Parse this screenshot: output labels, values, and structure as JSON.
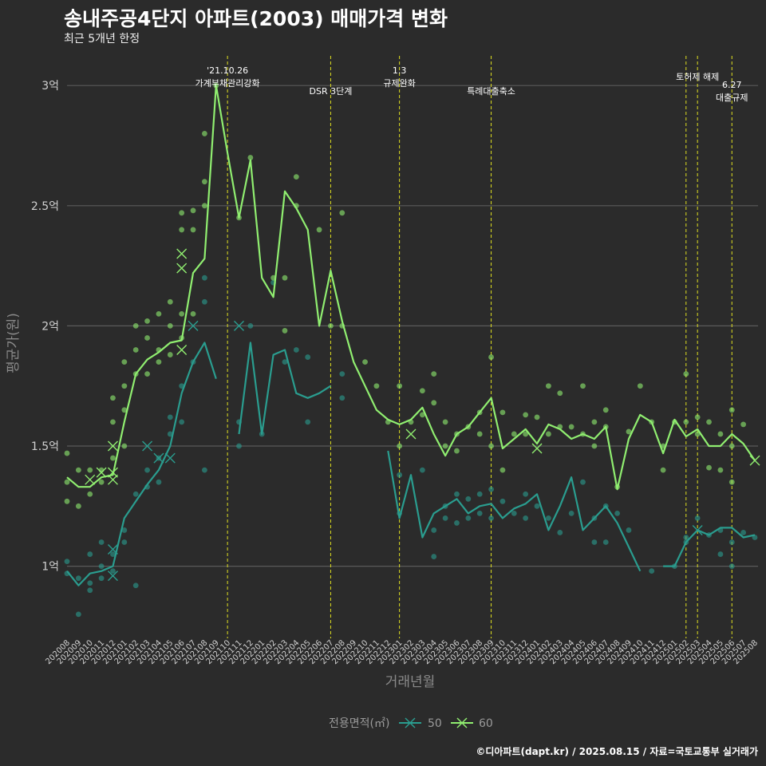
{
  "header": {
    "title": "송내주공4단지 아파트(2003) 매매가격 변화",
    "subtitle": "최근 5개년 한정"
  },
  "footer": {
    "caption": "©디아파트(dapt.kr) / 2025.08.15 / 자료=국토교통부 실거래가"
  },
  "chart_data": {
    "type": "line",
    "xlabel": "거래년월",
    "ylabel": "평균가(원)",
    "ylim": [
      0.7,
      3.15
    ],
    "y_ticks": [
      {
        "value": 1.0,
        "label": "1억"
      },
      {
        "value": 1.5,
        "label": "1.5억"
      },
      {
        "value": 2.0,
        "label": "2억"
      },
      {
        "value": 2.5,
        "label": "2.5억"
      },
      {
        "value": 3.0,
        "label": "3억"
      }
    ],
    "grid": true,
    "legend": {
      "title": "전용면적(㎡)",
      "position": "bottom"
    },
    "colors": {
      "50": "#2a9d8f",
      "60": "#90ee70",
      "vline": "#e0e020",
      "grid": "#5a5a5a"
    },
    "categories": [
      "202008",
      "202009",
      "202010",
      "202011",
      "202012",
      "202101",
      "202102",
      "202103",
      "202104",
      "202105",
      "202106",
      "202107",
      "202108",
      "202109",
      "202110",
      "202111",
      "202112",
      "202201",
      "202202",
      "202203",
      "202204",
      "202205",
      "202206",
      "202207",
      "202208",
      "202209",
      "202210",
      "202211",
      "202212",
      "202301",
      "202302",
      "202303",
      "202304",
      "202305",
      "202306",
      "202307",
      "202308",
      "202309",
      "202310",
      "202311",
      "202312",
      "202401",
      "202402",
      "202403",
      "202404",
      "202405",
      "202406",
      "202407",
      "202408",
      "202409",
      "202410",
      "202411",
      "202412",
      "202501",
      "202502",
      "202503",
      "202504",
      "202505",
      "202506",
      "202507",
      "202508"
    ],
    "series": [
      {
        "name": "50",
        "values": [
          0.98,
          0.92,
          0.97,
          0.98,
          1.0,
          1.2,
          1.27,
          1.34,
          1.4,
          1.5,
          1.72,
          1.85,
          1.93,
          1.78,
          null,
          1.55,
          1.93,
          1.55,
          1.88,
          1.9,
          1.72,
          1.7,
          1.72,
          1.75,
          null,
          null,
          null,
          null,
          1.48,
          1.2,
          1.38,
          1.12,
          1.22,
          1.25,
          1.28,
          1.22,
          1.25,
          1.26,
          1.2,
          1.24,
          1.26,
          1.3,
          1.15,
          1.25,
          1.37,
          1.15,
          1.2,
          1.25,
          1.18,
          1.08,
          0.98,
          null,
          1.0,
          1.0,
          1.1,
          1.15,
          1.13,
          1.16,
          1.16,
          1.12,
          1.13
        ]
      },
      {
        "name": "60",
        "values": [
          1.37,
          1.33,
          1.33,
          1.37,
          1.38,
          1.6,
          1.8,
          1.86,
          1.89,
          1.93,
          1.94,
          2.22,
          2.28,
          3.0,
          2.72,
          2.45,
          2.69,
          2.2,
          2.12,
          2.56,
          2.49,
          2.4,
          2.0,
          2.23,
          2.02,
          1.85,
          1.75,
          1.65,
          1.61,
          1.59,
          1.61,
          1.66,
          1.55,
          1.46,
          1.55,
          1.58,
          1.64,
          1.7,
          1.49,
          1.53,
          1.57,
          1.51,
          1.59,
          1.57,
          1.53,
          1.55,
          1.53,
          1.58,
          1.32,
          1.53,
          1.63,
          1.6,
          1.47,
          1.61,
          1.54,
          1.57,
          1.5,
          1.5,
          1.55,
          1.51,
          1.44
        ]
      }
    ],
    "scatter": {
      "50": [
        {
          "x": "202008",
          "y": 1.02
        },
        {
          "x": "202008",
          "y": 0.97
        },
        {
          "x": "202009",
          "y": 0.8
        },
        {
          "x": "202009",
          "y": 0.95
        },
        {
          "x": "202010",
          "y": 1.05
        },
        {
          "x": "202010",
          "y": 0.9
        },
        {
          "x": "202010",
          "y": 0.93
        },
        {
          "x": "202011",
          "y": 1.0
        },
        {
          "x": "202011",
          "y": 0.95
        },
        {
          "x": "202011",
          "y": 1.1
        },
        {
          "x": "202012",
          "y": 1.05
        },
        {
          "x": "202012",
          "y": 0.98
        },
        {
          "x": "202101",
          "y": 1.15
        },
        {
          "x": "202101",
          "y": 1.1
        },
        {
          "x": "202102",
          "y": 0.92
        },
        {
          "x": "202102",
          "y": 1.3
        },
        {
          "x": "202103",
          "y": 1.33
        },
        {
          "x": "202103",
          "y": 1.4
        },
        {
          "x": "202104",
          "y": 1.35
        },
        {
          "x": "202104",
          "y": 1.45
        },
        {
          "x": "202105",
          "y": 1.55
        },
        {
          "x": "202105",
          "y": 1.62
        },
        {
          "x": "202106",
          "y": 1.75
        },
        {
          "x": "202106",
          "y": 1.6
        },
        {
          "x": "202107",
          "y": 1.85
        },
        {
          "x": "202108",
          "y": 1.4
        },
        {
          "x": "202108",
          "y": 2.1
        },
        {
          "x": "202108",
          "y": 2.2
        },
        {
          "x": "202111",
          "y": 1.5
        },
        {
          "x": "202111",
          "y": 1.6
        },
        {
          "x": "202112",
          "y": 2.0
        },
        {
          "x": "202201",
          "y": 1.55
        },
        {
          "x": "202202",
          "y": 2.18
        },
        {
          "x": "202203",
          "y": 1.85
        },
        {
          "x": "202204",
          "y": 1.9
        },
        {
          "x": "202205",
          "y": 1.6
        },
        {
          "x": "202205",
          "y": 1.87
        },
        {
          "x": "202208",
          "y": 1.7
        },
        {
          "x": "202208",
          "y": 1.8
        },
        {
          "x": "202301",
          "y": 1.38
        },
        {
          "x": "202301",
          "y": 1.22
        },
        {
          "x": "202303",
          "y": 1.4
        },
        {
          "x": "202304",
          "y": 1.04
        },
        {
          "x": "202304",
          "y": 1.15
        },
        {
          "x": "202305",
          "y": 1.25
        },
        {
          "x": "202305",
          "y": 1.2
        },
        {
          "x": "202306",
          "y": 1.18
        },
        {
          "x": "202306",
          "y": 1.3
        },
        {
          "x": "202307",
          "y": 1.2
        },
        {
          "x": "202307",
          "y": 1.28
        },
        {
          "x": "202308",
          "y": 1.22
        },
        {
          "x": "202308",
          "y": 1.3
        },
        {
          "x": "202309",
          "y": 1.2
        },
        {
          "x": "202309",
          "y": 1.32
        },
        {
          "x": "202310",
          "y": 1.27
        },
        {
          "x": "202311",
          "y": 1.22
        },
        {
          "x": "202312",
          "y": 1.2
        },
        {
          "x": "202312",
          "y": 1.3
        },
        {
          "x": "202401",
          "y": 1.25
        },
        {
          "x": "202402",
          "y": 1.2
        },
        {
          "x": "202403",
          "y": 1.14
        },
        {
          "x": "202404",
          "y": 1.22
        },
        {
          "x": "202405",
          "y": 1.35
        },
        {
          "x": "202406",
          "y": 1.1
        },
        {
          "x": "202406",
          "y": 1.2
        },
        {
          "x": "202407",
          "y": 1.1
        },
        {
          "x": "202407",
          "y": 1.25
        },
        {
          "x": "202408",
          "y": 1.22
        },
        {
          "x": "202409",
          "y": 1.15
        },
        {
          "x": "202411",
          "y": 0.98
        },
        {
          "x": "202501",
          "y": 1.0
        },
        {
          "x": "202502",
          "y": 1.12
        },
        {
          "x": "202502",
          "y": 1.1
        },
        {
          "x": "202503",
          "y": 1.2
        },
        {
          "x": "202504",
          "y": 1.13
        },
        {
          "x": "202505",
          "y": 1.15
        },
        {
          "x": "202505",
          "y": 1.05
        },
        {
          "x": "202506",
          "y": 1.1
        },
        {
          "x": "202506",
          "y": 1.0
        },
        {
          "x": "202507",
          "y": 1.14
        },
        {
          "x": "202508",
          "y": 1.12
        }
      ],
      "60": [
        {
          "x": "202008",
          "y": 1.47
        },
        {
          "x": "202008",
          "y": 1.35
        },
        {
          "x": "202008",
          "y": 1.27
        },
        {
          "x": "202009",
          "y": 1.4
        },
        {
          "x": "202009",
          "y": 1.25
        },
        {
          "x": "202010",
          "y": 1.4
        },
        {
          "x": "202010",
          "y": 1.3
        },
        {
          "x": "202011",
          "y": 1.4
        },
        {
          "x": "202011",
          "y": 1.35
        },
        {
          "x": "202012",
          "y": 1.7
        },
        {
          "x": "202012",
          "y": 1.6
        },
        {
          "x": "202012",
          "y": 1.45
        },
        {
          "x": "202101",
          "y": 1.85
        },
        {
          "x": "202101",
          "y": 1.75
        },
        {
          "x": "202101",
          "y": 1.65
        },
        {
          "x": "202101",
          "y": 1.5
        },
        {
          "x": "202102",
          "y": 2.0
        },
        {
          "x": "202102",
          "y": 1.9
        },
        {
          "x": "202102",
          "y": 1.8
        },
        {
          "x": "202103",
          "y": 2.02
        },
        {
          "x": "202103",
          "y": 1.95
        },
        {
          "x": "202103",
          "y": 1.8
        },
        {
          "x": "202104",
          "y": 2.05
        },
        {
          "x": "202104",
          "y": 1.9
        },
        {
          "x": "202104",
          "y": 1.85
        },
        {
          "x": "202105",
          "y": 2.1
        },
        {
          "x": "202105",
          "y": 2.0
        },
        {
          "x": "202105",
          "y": 1.88
        },
        {
          "x": "202106",
          "y": 2.47
        },
        {
          "x": "202106",
          "y": 2.4
        },
        {
          "x": "202106",
          "y": 2.05
        },
        {
          "x": "202106",
          "y": 1.95
        },
        {
          "x": "202107",
          "y": 2.48
        },
        {
          "x": "202107",
          "y": 2.4
        },
        {
          "x": "202107",
          "y": 2.05
        },
        {
          "x": "202108",
          "y": 2.8
        },
        {
          "x": "202108",
          "y": 2.6
        },
        {
          "x": "202108",
          "y": 2.5
        },
        {
          "x": "202109",
          "y": 3.0
        },
        {
          "x": "202111",
          "y": 2.45
        },
        {
          "x": "202112",
          "y": 2.7
        },
        {
          "x": "202202",
          "y": 2.2
        },
        {
          "x": "202203",
          "y": 2.2
        },
        {
          "x": "202203",
          "y": 1.98
        },
        {
          "x": "202204",
          "y": 2.62
        },
        {
          "x": "202204",
          "y": 2.5
        },
        {
          "x": "202206",
          "y": 2.4
        },
        {
          "x": "202207",
          "y": 2.0
        },
        {
          "x": "202208",
          "y": 2.47
        },
        {
          "x": "202208",
          "y": 2.0
        },
        {
          "x": "202210",
          "y": 1.85
        },
        {
          "x": "202211",
          "y": 1.75
        },
        {
          "x": "202212",
          "y": 1.6
        },
        {
          "x": "202301",
          "y": 1.75
        },
        {
          "x": "202301",
          "y": 1.5
        },
        {
          "x": "202302",
          "y": 1.6
        },
        {
          "x": "202303",
          "y": 1.73
        },
        {
          "x": "202303",
          "y": 1.63
        },
        {
          "x": "202304",
          "y": 1.8
        },
        {
          "x": "202304",
          "y": 1.68
        },
        {
          "x": "202305",
          "y": 1.6
        },
        {
          "x": "202305",
          "y": 1.5
        },
        {
          "x": "202306",
          "y": 1.55
        },
        {
          "x": "202306",
          "y": 1.48
        },
        {
          "x": "202307",
          "y": 1.58
        },
        {
          "x": "202308",
          "y": 1.64
        },
        {
          "x": "202308",
          "y": 1.55
        },
        {
          "x": "202309",
          "y": 1.87
        },
        {
          "x": "202309",
          "y": 1.5
        },
        {
          "x": "202310",
          "y": 1.64
        },
        {
          "x": "202310",
          "y": 1.4
        },
        {
          "x": "202311",
          "y": 1.55
        },
        {
          "x": "202312",
          "y": 1.63
        },
        {
          "x": "202312",
          "y": 1.55
        },
        {
          "x": "202401",
          "y": 1.62
        },
        {
          "x": "202402",
          "y": 1.75
        },
        {
          "x": "202402",
          "y": 1.55
        },
        {
          "x": "202403",
          "y": 1.72
        },
        {
          "x": "202403",
          "y": 1.58
        },
        {
          "x": "202404",
          "y": 1.58
        },
        {
          "x": "202405",
          "y": 1.75
        },
        {
          "x": "202405",
          "y": 1.55
        },
        {
          "x": "202406",
          "y": 1.6
        },
        {
          "x": "202406",
          "y": 1.5
        },
        {
          "x": "202407",
          "y": 1.65
        },
        {
          "x": "202407",
          "y": 1.58
        },
        {
          "x": "202408",
          "y": 1.33
        },
        {
          "x": "202409",
          "y": 1.56
        },
        {
          "x": "202410",
          "y": 1.75
        },
        {
          "x": "202411",
          "y": 1.6
        },
        {
          "x": "202412",
          "y": 1.5
        },
        {
          "x": "202412",
          "y": 1.4
        },
        {
          "x": "202501",
          "y": 1.6
        },
        {
          "x": "202502",
          "y": 1.8
        },
        {
          "x": "202502",
          "y": 1.6
        },
        {
          "x": "202503",
          "y": 1.62
        },
        {
          "x": "202503",
          "y": 1.55
        },
        {
          "x": "202504",
          "y": 1.6
        },
        {
          "x": "202504",
          "y": 1.41
        },
        {
          "x": "202505",
          "y": 1.55
        },
        {
          "x": "202505",
          "y": 1.4
        },
        {
          "x": "202506",
          "y": 1.65
        },
        {
          "x": "202506",
          "y": 1.5
        },
        {
          "x": "202506",
          "y": 1.35
        },
        {
          "x": "202507",
          "y": 1.59
        }
      ]
    },
    "cancelled": {
      "50": [
        {
          "x": "202012",
          "y": 1.07
        },
        {
          "x": "202012",
          "y": 0.96
        },
        {
          "x": "202103",
          "y": 1.5
        },
        {
          "x": "202104",
          "y": 1.45
        },
        {
          "x": "202105",
          "y": 1.45
        },
        {
          "x": "202107",
          "y": 2.0
        },
        {
          "x": "202111",
          "y": 2.0
        },
        {
          "x": "202503",
          "y": 1.15
        }
      ],
      "60": [
        {
          "x": "202010",
          "y": 1.36
        },
        {
          "x": "202011",
          "y": 1.39
        },
        {
          "x": "202012",
          "y": 1.5
        },
        {
          "x": "202012",
          "y": 1.36
        },
        {
          "x": "202012",
          "y": 1.39
        },
        {
          "x": "202106",
          "y": 2.3
        },
        {
          "x": "202106",
          "y": 2.24
        },
        {
          "x": "202106",
          "y": 1.9
        },
        {
          "x": "202302",
          "y": 1.55
        },
        {
          "x": "202401",
          "y": 1.49
        },
        {
          "x": "202508",
          "y": 1.44
        }
      ]
    },
    "events": [
      {
        "x": "202110",
        "label_lines": [
          "'21.10.26",
          "가계부채관리강화"
        ],
        "row": 0
      },
      {
        "x": "202207",
        "label_lines": [
          "DSR 3단계"
        ],
        "row": 1
      },
      {
        "x": "202301",
        "label_lines": [
          "1.3",
          "규제완화"
        ],
        "row": 0
      },
      {
        "x": "202309",
        "label_lines": [
          "특례대출축소"
        ],
        "row": 1
      },
      {
        "x": "202502",
        "label_lines": [],
        "row": 0
      },
      {
        "x": "202503",
        "label_lines": [
          "토허제 해제"
        ],
        "row": 2
      },
      {
        "x": "202506",
        "label_lines": [
          "6.27",
          "대출규제"
        ],
        "row": 3
      }
    ]
  }
}
